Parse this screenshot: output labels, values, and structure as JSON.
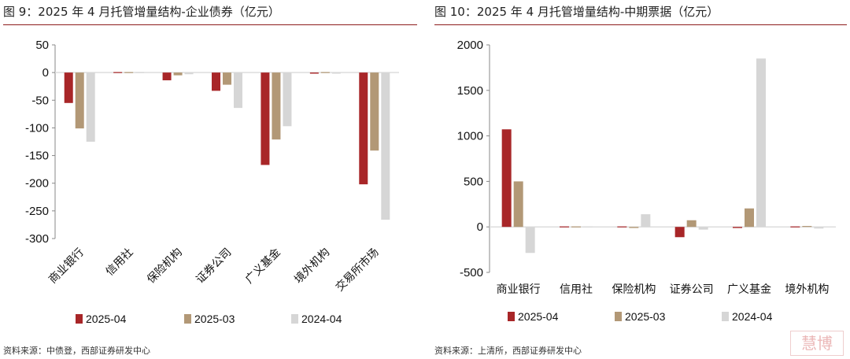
{
  "chart_data": [
    {
      "type": "bar",
      "title": "图 9：2025 年 4 月托管增量结构-企业债券（亿元）",
      "source": "资料来源：中债登，西部证券研发中心",
      "categories": [
        "商业银行",
        "信用社",
        "保险机构",
        "证券公司",
        "广义基金",
        "境外机构",
        "交易所市场"
      ],
      "ylim": [
        -300,
        50
      ],
      "yticks": [
        50,
        0,
        -50,
        -100,
        -150,
        -200,
        -250,
        -300
      ],
      "legend_position": "bottom",
      "series": [
        {
          "name": "2025-04",
          "color": "#a82628",
          "values": [
            -55,
            0,
            -14,
            -33,
            -167,
            -2,
            -202
          ]
        },
        {
          "name": "2025-03",
          "color": "#b29876",
          "values": [
            -101,
            0,
            -5,
            -22,
            -121,
            0,
            -141
          ]
        },
        {
          "name": "2024-04",
          "color": "#d6d6d6",
          "values": [
            -125,
            0,
            -3,
            -64,
            -97,
            -2,
            -266
          ]
        }
      ]
    },
    {
      "type": "bar",
      "title": "图 10：2025 年 4 月托管增量结构-中期票据（亿元）",
      "source": "资料来源：上清所，西部证券研发中心",
      "categories": [
        "商业银行",
        "信用社",
        "保险机构",
        "证券公司",
        "广义基金",
        "境外机构"
      ],
      "ylim": [
        -500,
        2000
      ],
      "yticks": [
        2000,
        1500,
        1000,
        500,
        0,
        -500
      ],
      "legend_position": "bottom",
      "series": [
        {
          "name": "2025-04",
          "color": "#a82628",
          "values": [
            1072,
            0,
            5,
            -113,
            -12,
            3
          ]
        },
        {
          "name": "2025-03",
          "color": "#b29876",
          "values": [
            500,
            -3,
            -12,
            73,
            203,
            10
          ]
        },
        {
          "name": "2024-04",
          "color": "#d6d6d6",
          "values": [
            -286,
            -3,
            139,
            -30,
            1850,
            -18
          ]
        }
      ]
    }
  ],
  "watermark": "慧博"
}
